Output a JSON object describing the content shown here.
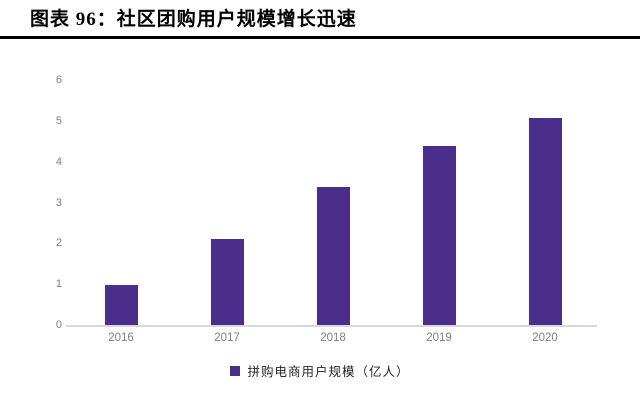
{
  "header": {
    "title": "图表 96：社区团购用户规模增长迅速"
  },
  "chart_data": {
    "type": "bar",
    "title": "图表 96：社区团购用户规模增长迅速",
    "categories": [
      "2016",
      "2017",
      "2018",
      "2019",
      "2020"
    ],
    "values": [
      0.97,
      2.11,
      3.37,
      4.38,
      5.07
    ],
    "series_name": "拼购电商用户规模（亿人）",
    "legend": [
      "拼购电商用户规模（亿人）"
    ],
    "legend_position": "bottom",
    "xlabel": "",
    "ylabel": "",
    "ylim": [
      0,
      6
    ],
    "yticks": [
      0,
      1,
      2,
      3,
      4,
      5,
      6
    ],
    "grid": false,
    "bar_color": "#4b2d8b",
    "axis_line_color": "#d9d9d9",
    "tick_label_color": "#7f7f7f",
    "legend_text_color": "#262626",
    "title_color": "#000000"
  }
}
